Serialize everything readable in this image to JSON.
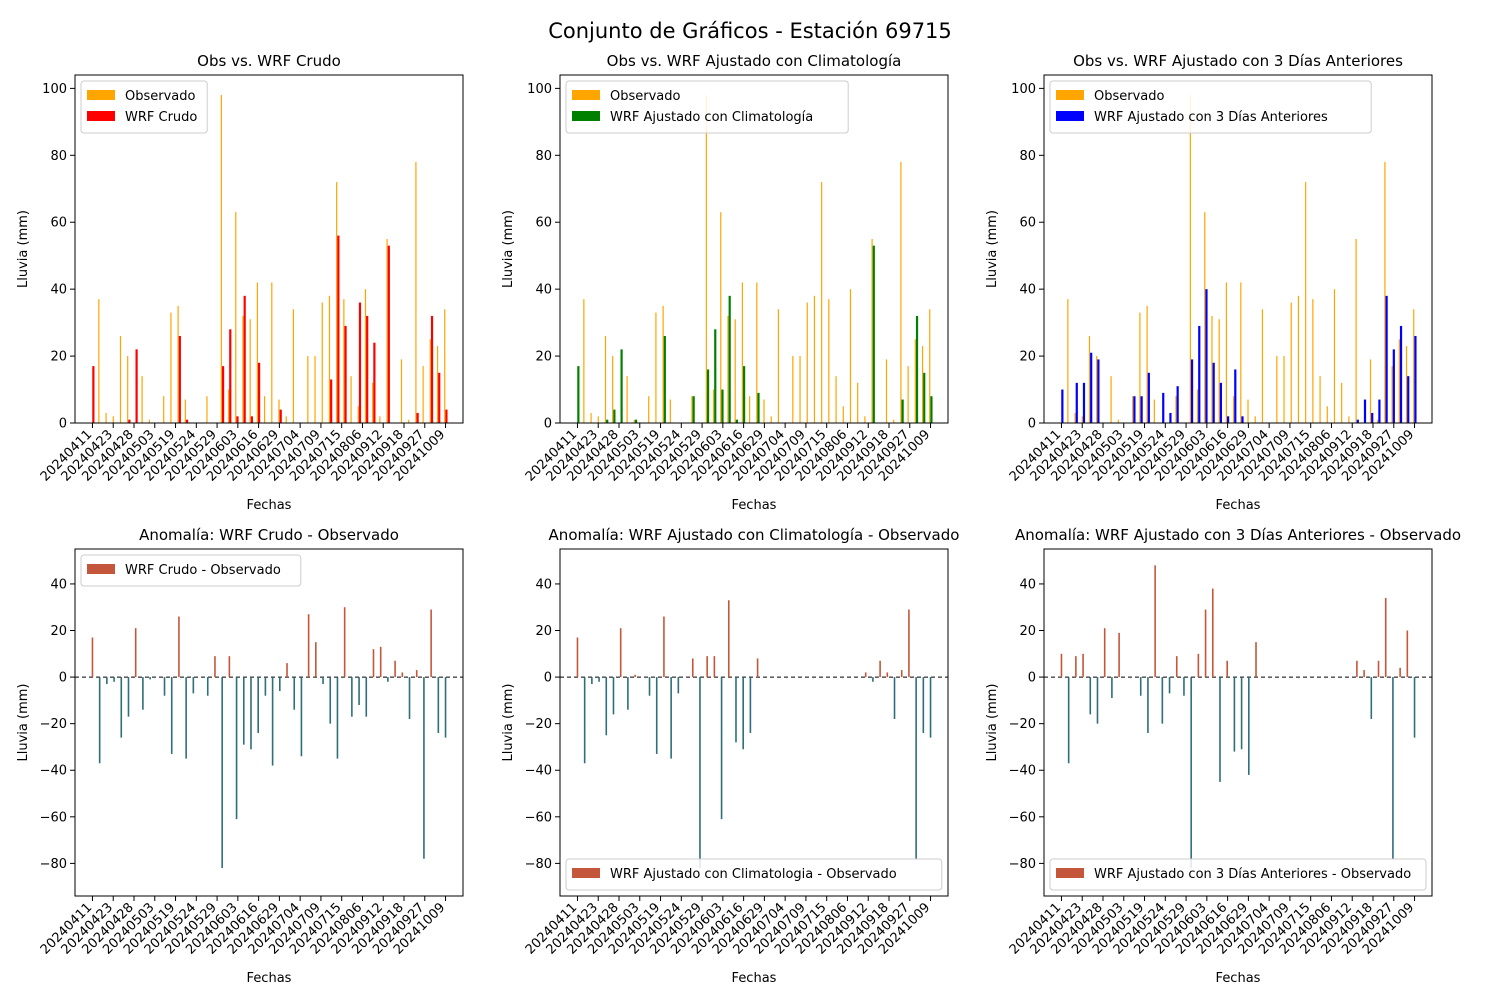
{
  "figure": {
    "title": "Conjunto de Gráficos - Estación 69715"
  },
  "colors": {
    "observed": "#ffa500",
    "raw": "#ff0000",
    "clim": "#008000",
    "prev3": "#0000ff",
    "anom_pos": "#c4573b",
    "anom_neg": "#2e6f79"
  },
  "chart_data": [
    {
      "type": "bar",
      "title": "Obs vs. WRF Crudo",
      "xlabel": "Fechas",
      "ylabel": "Lluvia (mm)",
      "ylim": [
        0,
        104
      ],
      "yticks": [
        0,
        20,
        40,
        60,
        80,
        100
      ],
      "legend_position": "upper left",
      "tick_labels": [
        "20240411",
        "20240423",
        "20240428",
        "20240503",
        "20240519",
        "20240524",
        "20240529",
        "20240603",
        "20240616",
        "20240629",
        "20240704",
        "20240709",
        "20240715",
        "20240806",
        "20240912",
        "20240918",
        "20240927",
        "20241009"
      ],
      "series": [
        {
          "name": "Observado",
          "values": [
            0,
            37,
            3,
            2,
            26,
            20,
            0,
            14,
            1,
            0,
            8,
            33,
            35,
            7,
            0,
            0,
            8,
            0,
            98,
            10,
            63,
            32,
            31,
            42,
            8,
            42,
            7,
            2,
            34,
            0,
            20,
            20,
            36,
            38,
            72,
            37,
            14,
            5,
            40,
            12,
            2,
            55,
            0,
            19,
            1,
            78,
            17,
            25,
            23,
            34
          ]
        },
        {
          "name": "WRF Crudo",
          "values": [
            17,
            0,
            0,
            0,
            0,
            1,
            22,
            0,
            0,
            0,
            0,
            0,
            26,
            1,
            0,
            0,
            0,
            0,
            17,
            28,
            2,
            38,
            2,
            18,
            0,
            0,
            4,
            0,
            0,
            0,
            0,
            0,
            0,
            13,
            56,
            29,
            0,
            36,
            32,
            24,
            0,
            53,
            0,
            0,
            0,
            3,
            0,
            32,
            15,
            4
          ]
        }
      ]
    },
    {
      "type": "bar",
      "title": "Obs vs. WRF Ajustado con Climatología",
      "xlabel": "Fechas",
      "ylabel": "Lluvia (mm)",
      "ylim": [
        0,
        104
      ],
      "yticks": [
        0,
        20,
        40,
        60,
        80,
        100
      ],
      "legend_position": "upper left",
      "tick_labels": [
        "20240411",
        "20240423",
        "20240428",
        "20240503",
        "20240519",
        "20240524",
        "20240529",
        "20240603",
        "20240616",
        "20240629",
        "20240704",
        "20240709",
        "20240715",
        "20240806",
        "20240912",
        "20240918",
        "20240927",
        "20241009"
      ],
      "series": [
        {
          "name": "Observado",
          "values": [
            0,
            37,
            3,
            2,
            26,
            20,
            0,
            14,
            1,
            0,
            8,
            33,
            35,
            7,
            0,
            0,
            8,
            0,
            98,
            10,
            63,
            32,
            31,
            42,
            8,
            42,
            7,
            2,
            34,
            0,
            20,
            20,
            36,
            38,
            72,
            37,
            14,
            5,
            40,
            12,
            2,
            55,
            0,
            19,
            1,
            78,
            17,
            25,
            23,
            34
          ]
        },
        {
          "name": "WRF Ajustado con Climatología",
          "values": [
            17,
            0,
            0,
            0,
            1,
            4,
            22,
            0,
            1,
            0,
            0,
            0,
            26,
            0,
            0,
            0,
            8,
            0,
            16,
            28,
            10,
            38,
            1,
            17,
            0,
            9,
            0,
            0,
            0,
            0,
            0,
            0,
            0,
            0,
            0,
            0,
            0,
            0,
            0,
            0,
            0,
            53,
            0,
            0,
            0,
            7,
            0,
            32,
            15,
            8
          ]
        }
      ]
    },
    {
      "type": "bar",
      "title": "Obs vs. WRF Ajustado con 3 Días Anteriores",
      "xlabel": "Fechas",
      "ylabel": "Lluvia (mm)",
      "ylim": [
        0,
        104
      ],
      "yticks": [
        0,
        20,
        40,
        60,
        80,
        100
      ],
      "legend_position": "upper left",
      "tick_labels": [
        "20240411",
        "20240423",
        "20240428",
        "20240503",
        "20240519",
        "20240524",
        "20240529",
        "20240603",
        "20240616",
        "20240629",
        "20240704",
        "20240709",
        "20240715",
        "20240806",
        "20240912",
        "20240918",
        "20240927",
        "20241009"
      ],
      "series": [
        {
          "name": "Observado",
          "values": [
            0,
            37,
            3,
            2,
            26,
            20,
            0,
            14,
            1,
            0,
            8,
            33,
            35,
            7,
            0,
            0,
            8,
            0,
            98,
            10,
            63,
            32,
            31,
            42,
            8,
            42,
            7,
            2,
            34,
            0,
            20,
            20,
            36,
            38,
            72,
            37,
            14,
            5,
            40,
            12,
            2,
            55,
            0,
            19,
            1,
            78,
            17,
            25,
            23,
            34
          ]
        },
        {
          "name": "WRF Ajustado con 3 Días Anteriores",
          "values": [
            10,
            0,
            12,
            12,
            21,
            19,
            0,
            0,
            0,
            0,
            8,
            8,
            15,
            0,
            9,
            3,
            11,
            0,
            19,
            29,
            40,
            18,
            12,
            2,
            16,
            2,
            0,
            0,
            0,
            0,
            0,
            0,
            0,
            0,
            0,
            0,
            0,
            0,
            0,
            0,
            0,
            1,
            7,
            3,
            7,
            38,
            22,
            29,
            14,
            26
          ]
        }
      ]
    },
    {
      "type": "bar",
      "title": "Anomalía: WRF Crudo - Observado",
      "xlabel": "Fechas",
      "ylabel": "Lluvia (mm)",
      "ylim": [
        -94,
        55
      ],
      "yticks": [
        -80,
        -60,
        -40,
        -20,
        0,
        20,
        40
      ],
      "legend_position": "upper left",
      "tick_labels": [
        "20240411",
        "20240423",
        "20240428",
        "20240503",
        "20240519",
        "20240524",
        "20240529",
        "20240603",
        "20240616",
        "20240629",
        "20240704",
        "20240709",
        "20240715",
        "20240806",
        "20240912",
        "20240918",
        "20240927",
        "20241009"
      ],
      "series": [
        {
          "name": "WRF Crudo - Observado",
          "values": [
            17,
            -37,
            -3,
            -2,
            -26,
            -17,
            21,
            -14,
            -1,
            0,
            -8,
            -33,
            26,
            -35,
            -7,
            0,
            -8,
            9,
            -82,
            9,
            -61,
            -29,
            -31,
            -24,
            -8,
            -38,
            -6,
            6,
            -14,
            -34,
            27,
            15,
            -3,
            -20,
            -35,
            30,
            -17,
            -12,
            -17,
            12,
            13,
            -2,
            7,
            2,
            -18,
            3,
            -78,
            29,
            -24,
            -26
          ]
        }
      ]
    },
    {
      "type": "bar",
      "title": "Anomalía: WRF Ajustado con Climatología - Observado",
      "xlabel": "Fechas",
      "ylabel": "Lluvia (mm)",
      "ylim": [
        -94,
        55
      ],
      "yticks": [
        -80,
        -60,
        -40,
        -20,
        0,
        20,
        40
      ],
      "legend_position": "lower left",
      "tick_labels": [
        "20240411",
        "20240423",
        "20240428",
        "20240503",
        "20240519",
        "20240524",
        "20240529",
        "20240603",
        "20240616",
        "20240629",
        "20240704",
        "20240709",
        "20240715",
        "20240806",
        "20240912",
        "20240918",
        "20240927",
        "20241009"
      ],
      "series": [
        {
          "name": "WRF Ajustado con Climatologia - Observado",
          "values": [
            17,
            -37,
            -3,
            -2,
            -25,
            -16,
            21,
            -14,
            1,
            0,
            -8,
            -33,
            26,
            -35,
            -7,
            0,
            8,
            -82,
            9,
            9,
            -61,
            33,
            -28,
            -31,
            -24,
            8,
            0,
            0,
            0,
            0,
            0,
            0,
            0,
            0,
            0,
            0,
            0,
            0,
            0,
            0,
            2,
            -2,
            7,
            2,
            -18,
            3,
            29,
            -78,
            -24,
            -26
          ]
        }
      ]
    },
    {
      "type": "bar",
      "title": "Anomalía: WRF Ajustado con 3 Días Anteriores - Observado",
      "xlabel": "Fechas",
      "ylabel": "Lluvia (mm)",
      "ylim": [
        -94,
        55
      ],
      "yticks": [
        -80,
        -60,
        -40,
        -20,
        0,
        20,
        40
      ],
      "legend_position": "lower left",
      "tick_labels": [
        "20240411",
        "20240423",
        "20240428",
        "20240503",
        "20240519",
        "20240524",
        "20240529",
        "20240603",
        "20240616",
        "20240629",
        "20240704",
        "20240709",
        "20240715",
        "20240806",
        "20240912",
        "20240918",
        "20240927",
        "20241009"
      ],
      "series": [
        {
          "name": "WRF Ajustado con 3 Días Anteriores - Observado",
          "values": [
            10,
            -37,
            9,
            10,
            -16,
            -20,
            21,
            -9,
            19,
            0,
            0,
            -8,
            -24,
            48,
            -20,
            -7,
            9,
            -8,
            -82,
            10,
            29,
            38,
            -45,
            7,
            -32,
            -31,
            -42,
            15,
            0,
            0,
            0,
            0,
            0,
            0,
            0,
            0,
            0,
            0,
            0,
            0,
            0,
            7,
            3,
            -18,
            7,
            34,
            -78,
            4,
            20,
            -26
          ]
        }
      ]
    }
  ]
}
